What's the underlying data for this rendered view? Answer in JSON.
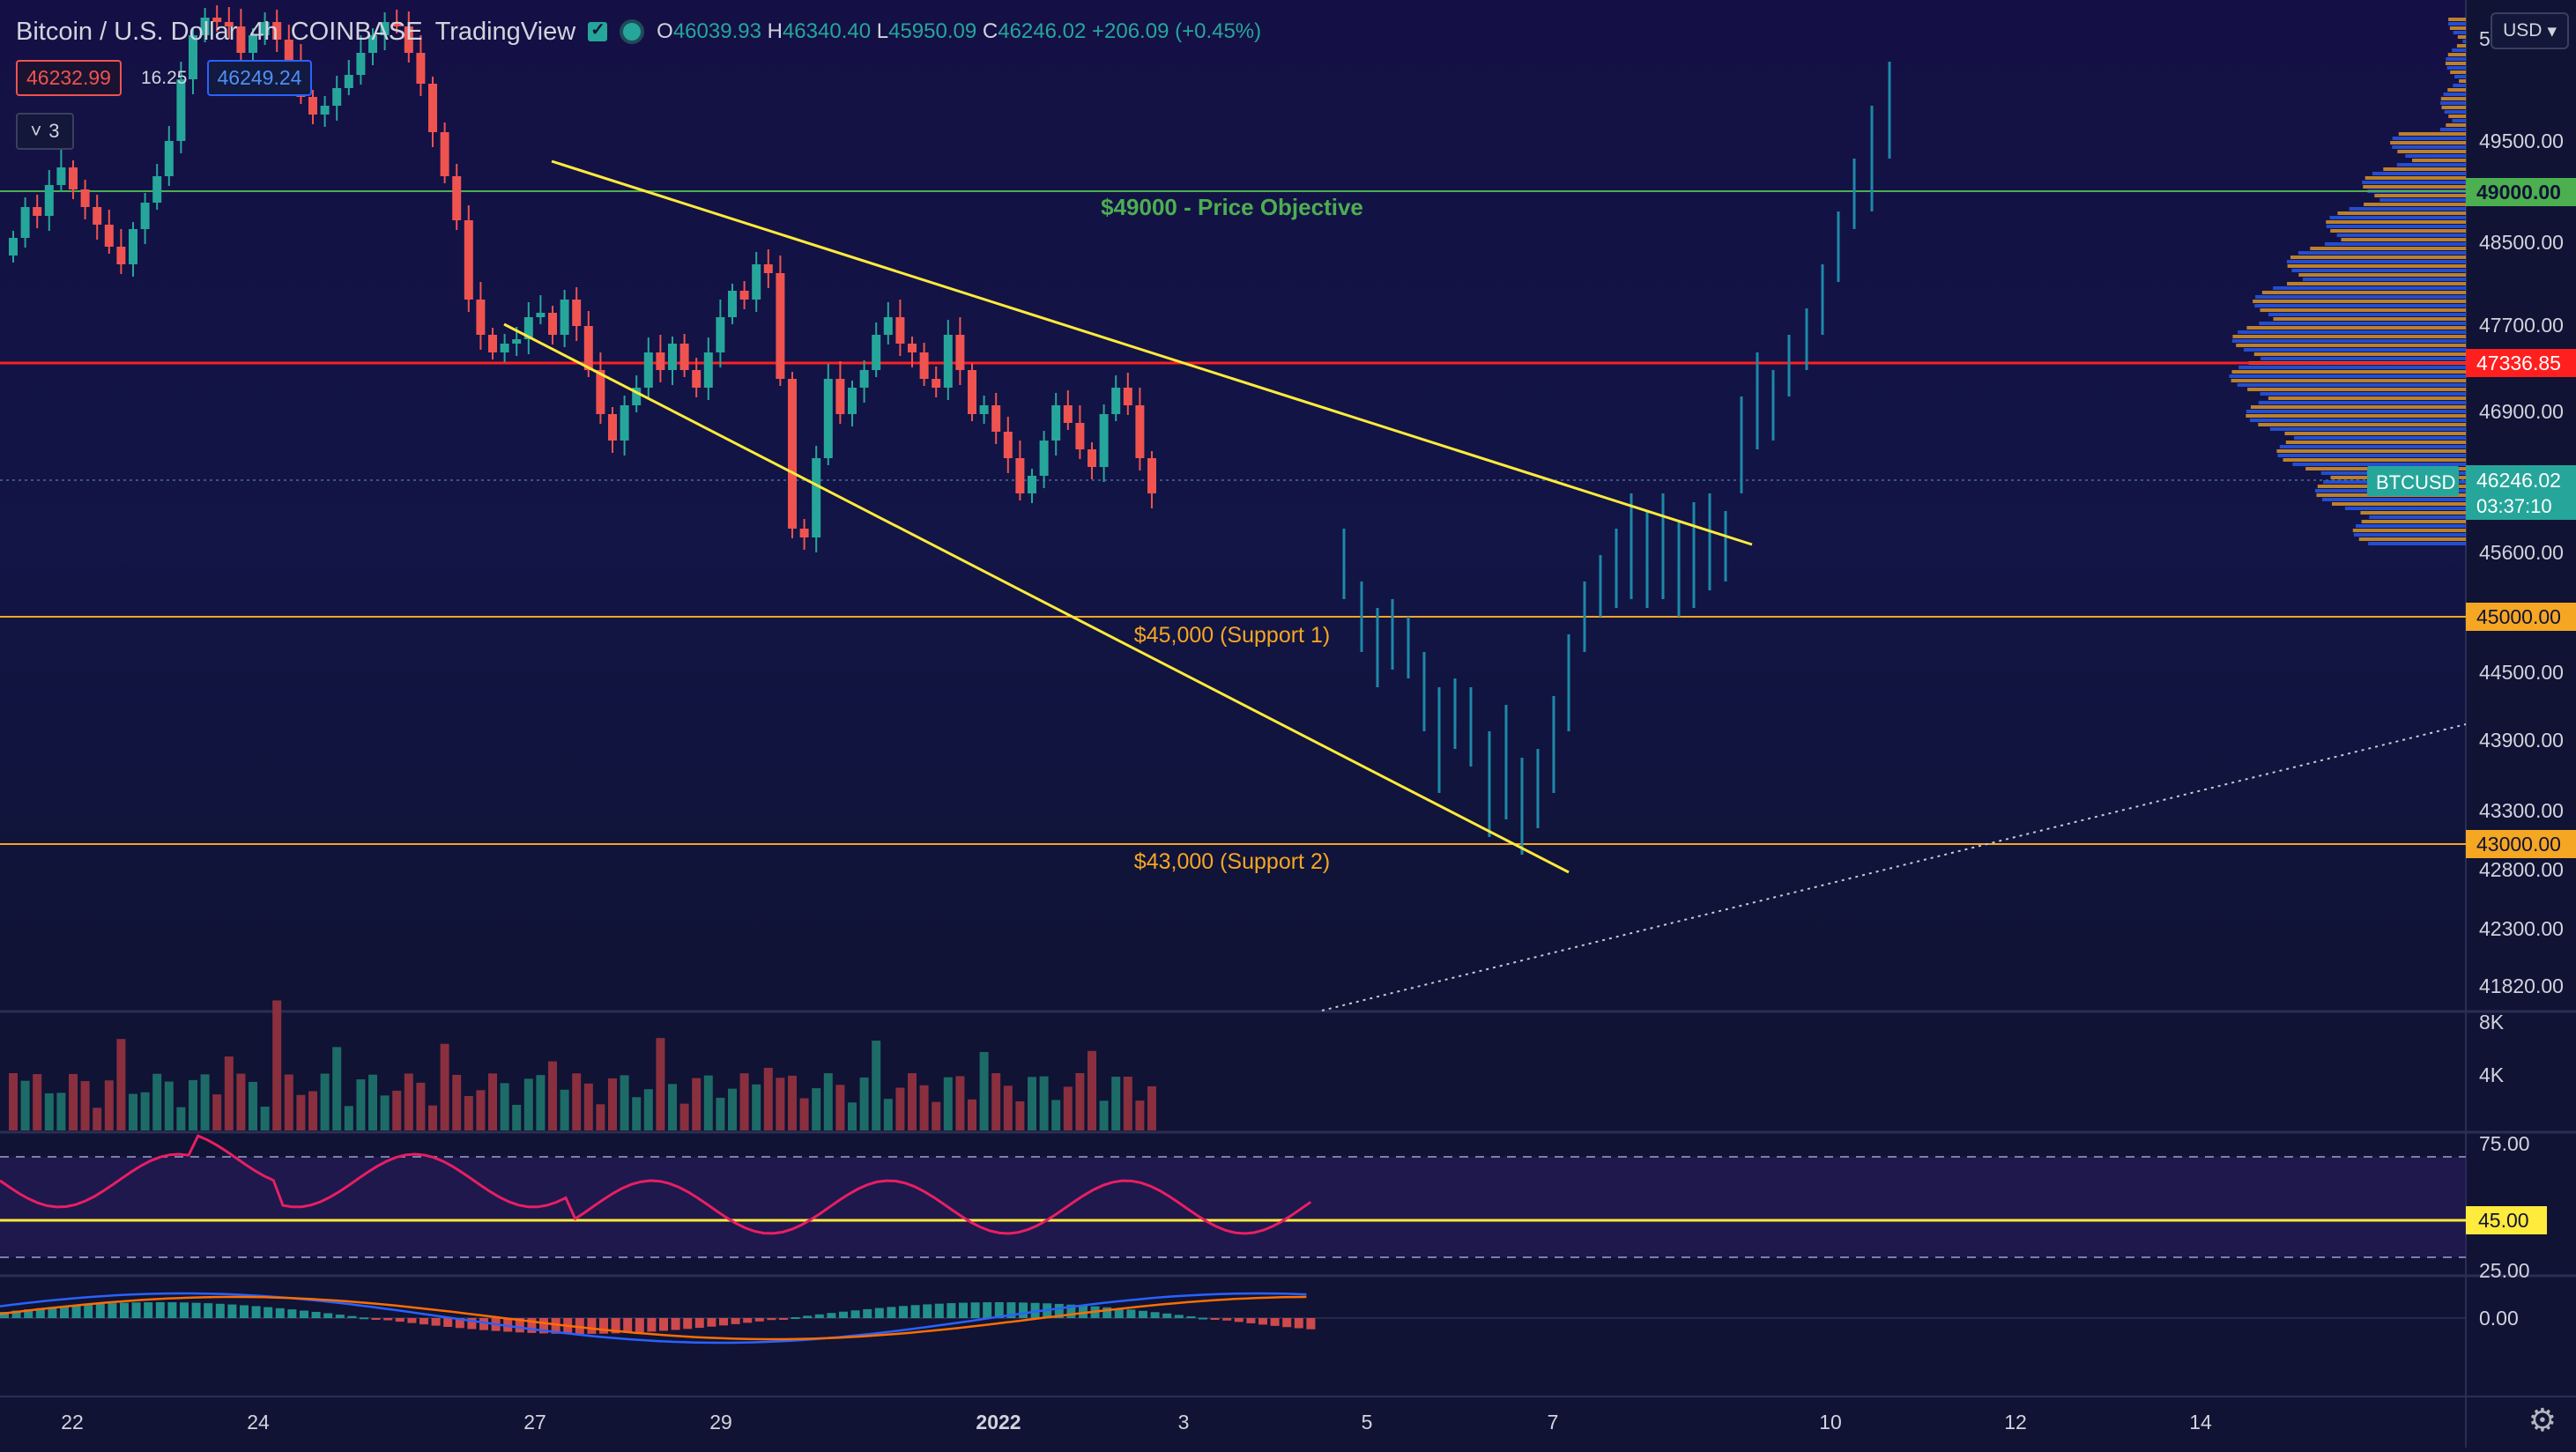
{
  "header": {
    "symbol": "Bitcoin / U.S. Dollar",
    "interval": "4h",
    "exchange": "COINBASE",
    "source": "TradingView",
    "ohlc": {
      "o_label": "O",
      "o": "46039.93",
      "h_label": "H",
      "h": "46340.40",
      "l_label": "L",
      "l": "45950.09",
      "c_label": "C",
      "c": "46246.02",
      "change": "+206.09 (+0.45%)"
    }
  },
  "trade": {
    "sell": "46232.99",
    "spread": "16.25",
    "buy": "46249.24"
  },
  "indicator_toggle": {
    "count": "3"
  },
  "currency": "USD",
  "colors": {
    "background": "#101334",
    "up": "#26a69a",
    "down": "#ef5350",
    "trendline": "#ffeb3b",
    "objective": "#4caf50",
    "support": "#f5a623",
    "resistance": "#ff1f1f"
  },
  "price_scale": {
    "ticks": [
      "5",
      "49500.00",
      "48500.00",
      "47700.00",
      "46900.00",
      "45600.00",
      "44500.00",
      "43900.00",
      "43300.00",
      "42800.00",
      "42300.00",
      "41820.00"
    ],
    "badges": {
      "objective": "49000.00",
      "resistance": "47336.85",
      "current_symbol": "BTCUSD",
      "current_price": "46246.02",
      "countdown": "03:37:10",
      "support1": "45000.00",
      "support2": "43000.00"
    }
  },
  "annotations": {
    "objective": "$49000 - Price Objective",
    "support1": "$45,000 (Support 1)",
    "support2": "$43,000 (Support 2)"
  },
  "volume_scale": [
    "8K",
    "4K"
  ],
  "rsi_scale": {
    "upper": "75.00",
    "lower": "25.00",
    "level": "45.00"
  },
  "macd_scale": {
    "zero": "0.00"
  },
  "time_axis": [
    "22",
    "24",
    "27",
    "29",
    "2022",
    "3",
    "5",
    "7",
    "10",
    "12",
    "14"
  ]
}
